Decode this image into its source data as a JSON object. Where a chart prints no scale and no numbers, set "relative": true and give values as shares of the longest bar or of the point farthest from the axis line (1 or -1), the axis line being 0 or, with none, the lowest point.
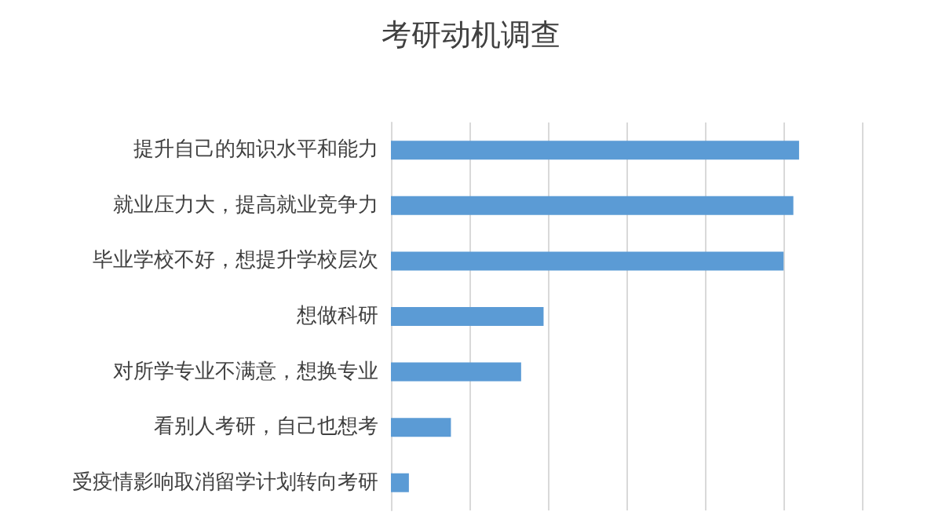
{
  "chart_data": {
    "type": "bar",
    "orientation": "horizontal",
    "relative": true,
    "title": "考研动机调查",
    "categories": [
      "提升自己的知识水平和能力",
      "就业压力大，提高就业竞争力",
      "毕业学校不好，想提升学校层次",
      "想做科研",
      "对所学专业不满意，想换专业",
      "看别人考研，自己也想考",
      "受疫情影响取消留学计划转向考研"
    ],
    "values": [
      1,
      0.986,
      0.962,
      0.374,
      0.319,
      0.147,
      0.044
    ],
    "color": "#5b9bd5",
    "grid": "x"
  }
}
